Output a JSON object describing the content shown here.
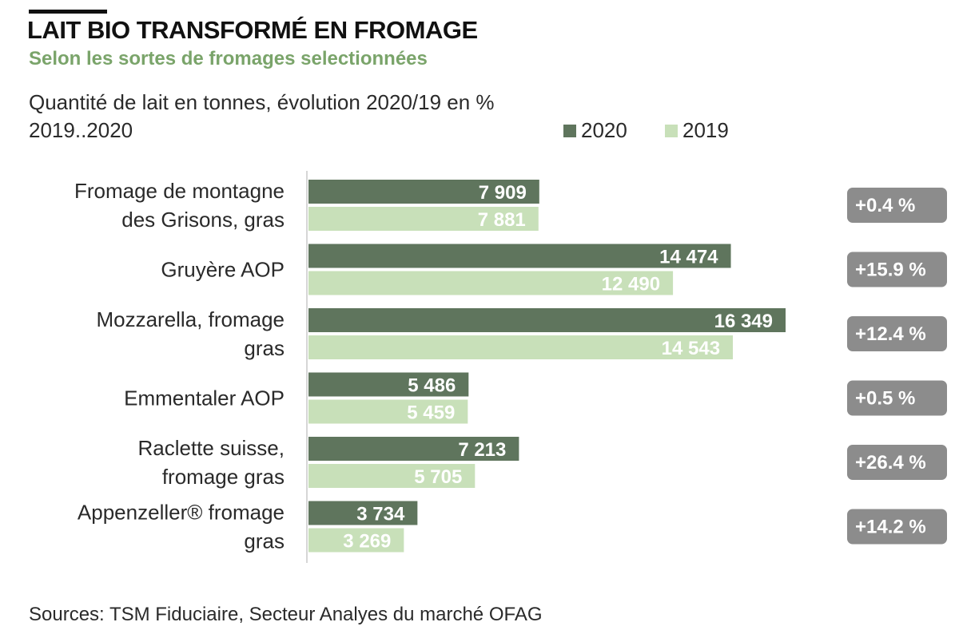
{
  "title": "LAIT BIO TRANSFORMÉ EN FROMAGE",
  "subtitle": "Selon les sortes de fromages selectionnées",
  "measure_label": "Quantité de lait en tonnes, évolution 2020/19  en %",
  "period_label": "2019..2020",
  "source": "Sources: TSM Fiduciaire, Secteur Analyes du marché OFAG",
  "colors": {
    "series_2020": "#5f755d",
    "series_2019": "#c8e0b9",
    "change_box": "#8c8c8c"
  },
  "chart_data": {
    "type": "bar",
    "orientation": "horizontal",
    "categories": [
      [
        "Fromage de montagne",
        "des Grisons, gras"
      ],
      [
        "Gruyère AOP"
      ],
      [
        "Mozzarella, fromage",
        "gras"
      ],
      [
        "Emmentaler AOP"
      ],
      [
        "Raclette suisse,",
        "fromage gras"
      ],
      [
        "Appenzeller® fromage",
        "gras"
      ]
    ],
    "series": [
      {
        "name": "2020",
        "values": [
          7909,
          14474,
          16349,
          5486,
          7213,
          3734
        ],
        "labels": [
          "7 909",
          "14 474",
          "16 349",
          "5 486",
          "7 213",
          "3 734"
        ]
      },
      {
        "name": "2019",
        "values": [
          7881,
          12490,
          14543,
          5459,
          5705,
          3269
        ],
        "labels": [
          "7 881",
          "12 490",
          "14 543",
          "5 459",
          "5 705",
          "3 269"
        ]
      }
    ],
    "change": [
      "+0.4 %",
      "+15.9 %",
      "+12.4 %",
      "+0.5 %",
      "+26.4 %",
      "+14.2 %"
    ],
    "xlim": [
      0,
      16349
    ],
    "legend_position": "top"
  }
}
